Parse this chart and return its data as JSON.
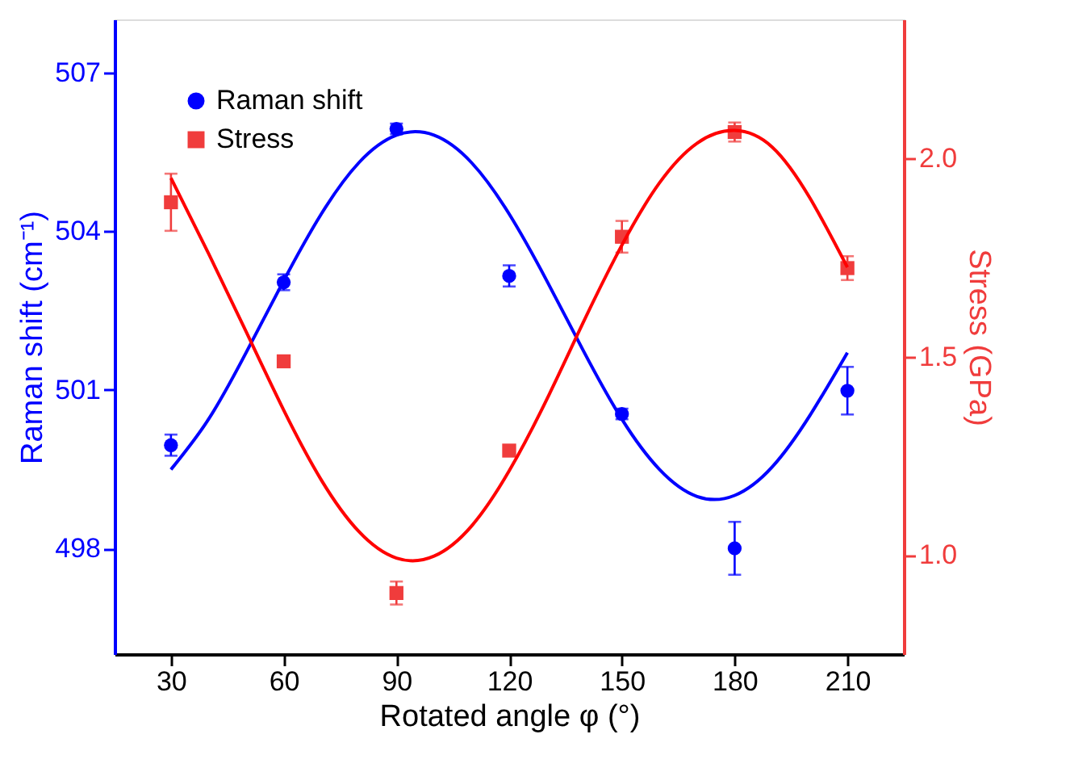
{
  "chart_data": {
    "type": "scatter",
    "xlabel": "Rotated angle φ (°)",
    "ylabel": "Raman shift (cm⁻¹)",
    "y2label": "Stress (GPa)",
    "xlim": [
      15,
      225
    ],
    "xticks": [
      30,
      60,
      90,
      120,
      150,
      180,
      210
    ],
    "ylim": [
      496,
      508
    ],
    "yticks": [
      498,
      501,
      504,
      507
    ],
    "y2lim": [
      0.75,
      2.35
    ],
    "y2ticks": [
      {
        "value": 1.0,
        "label": "1.0"
      },
      {
        "value": 1.5,
        "label": "1.5"
      },
      {
        "value": 2.0,
        "label": "2.0"
      }
    ],
    "legend": "top left",
    "grid": false,
    "series": [
      {
        "name": "Raman shift",
        "marker": "circle",
        "color": "#0000ff",
        "x": [
          30,
          60,
          90,
          120,
          150,
          180,
          210
        ],
        "values": [
          499.95,
          503.03,
          505.93,
          503.15,
          500.54,
          498.0,
          500.98
        ],
        "errors": [
          0.2,
          0.15,
          0.1,
          0.2,
          0.1,
          0.5,
          0.45
        ]
      },
      {
        "name": "Stress",
        "marker": "square",
        "axis": "y2",
        "color": "#f03c3c",
        "x": [
          30,
          60,
          90,
          120,
          150,
          180,
          210
        ],
        "values": [
          1.889,
          1.488,
          0.904,
          1.263,
          1.802,
          2.066,
          1.723
        ],
        "errors": [
          0.072,
          0.01,
          0.029,
          0.01,
          0.04,
          0.024,
          0.03
        ]
      },
      {
        "type": "line",
        "color": "#0000ff",
        "x": [
          30,
          40,
          50,
          60,
          70,
          80,
          90,
          100,
          110,
          120,
          130,
          140,
          150,
          160,
          170,
          180,
          190,
          200,
          210
        ],
        "values": [
          499.49,
          500.44,
          501.7,
          503.06,
          504.32,
          505.29,
          505.81,
          505.81,
          505.29,
          504.32,
          503.06,
          501.7,
          500.44,
          499.49,
          498.98,
          499.0,
          499.54,
          500.51,
          501.7
        ]
      },
      {
        "type": "line",
        "axis": "y2",
        "color": "#ff0000",
        "x": [
          30,
          40,
          50,
          60,
          70,
          80,
          90,
          100,
          110,
          120,
          130,
          140,
          150,
          160,
          170,
          180,
          190,
          200,
          210
        ],
        "values": [
          1.95,
          1.76,
          1.563,
          1.365,
          1.189,
          1.059,
          0.992,
          0.997,
          1.073,
          1.212,
          1.392,
          1.592,
          1.781,
          1.938,
          2.038,
          2.07,
          2.028,
          1.9,
          1.725
        ]
      }
    ]
  }
}
